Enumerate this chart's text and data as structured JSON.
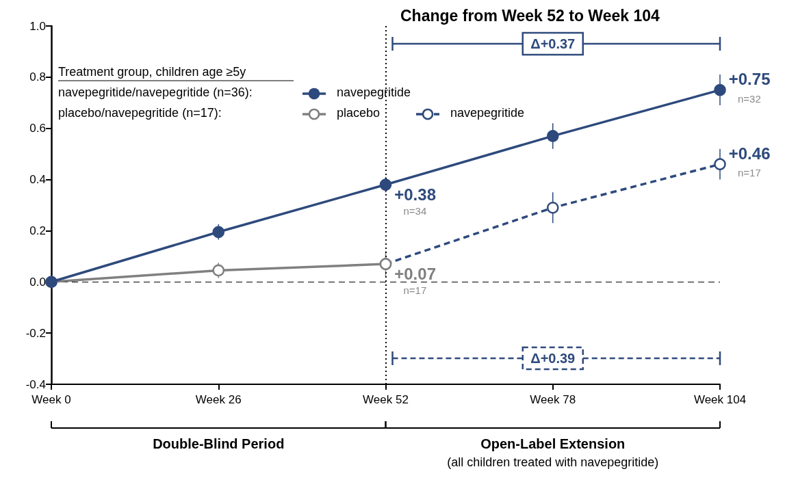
{
  "chart_data": {
    "type": "line",
    "title": "Change from Week 52 to Week 104",
    "legend_title": "Treatment group, children age ≥5y",
    "categories": [
      "Week 0",
      "Week 26",
      "Week 52",
      "Week 78",
      "Week 104"
    ],
    "series": [
      {
        "name": "navepegritide",
        "color": "#2e4a7d",
        "values": [
          0,
          0.195,
          0.38,
          0.57,
          0.75
        ],
        "errors": [
          null,
          0.03,
          0.03,
          0.05,
          0.06
        ],
        "value_labels": [
          null,
          null,
          "+0.38",
          null,
          "+0.75"
        ],
        "line_style": "solid"
      },
      {
        "name": "placebo",
        "color": "#808080",
        "values": [
          0,
          0.045,
          0.07,
          null,
          null
        ],
        "errors": [
          null,
          0.03,
          0.05,
          null,
          null
        ],
        "value_labels": [
          null,
          null,
          "+0.07",
          null,
          null
        ],
        "line_style": "solid"
      },
      {
        "name": "navepegritide",
        "color": "#2e4a7d",
        "values": [
          null,
          null,
          0.07,
          0.29,
          0.46
        ],
        "errors": [
          null,
          null,
          null,
          0.06,
          0.06
        ],
        "value_labels": [
          null,
          null,
          null,
          null,
          "+0.46"
        ],
        "line_style": "dashed"
      }
    ],
    "ylim": [
      -0.4,
      1.0
    ],
    "yticks": [
      {
        "value": -0.4,
        "label": "-0.4"
      },
      {
        "value": -0.2,
        "label": "-0.2"
      },
      {
        "value": 0,
        "label": "0.0"
      },
      {
        "value": 0.2,
        "label": "0.2"
      },
      {
        "value": 0.4,
        "label": "0.4"
      },
      {
        "value": 0.6,
        "label": "0.6"
      },
      {
        "value": 0.8,
        "label": "0.8"
      },
      {
        "value": 1,
        "label": "1.0"
      }
    ],
    "grid": false,
    "legend": "top left",
    "marker": "circle",
    "ref_lines": [
      {
        "axis": "x",
        "value": "Week 52",
        "color": "#000000",
        "line_style": "dotted"
      },
      {
        "axis": "y",
        "value": 0,
        "color": "#000000",
        "line_style": "dashed"
      }
    ],
    "annotations": [
      "navepegritide/navepegritide (n=36):",
      "placebo/navepegritide (n=17):",
      {
        "text": "n=34",
        "x": "Week 52",
        "y": 0.38
      },
      {
        "text": "n=17",
        "x": "Week 52",
        "y": 0.07
      },
      {
        "text": "n=32",
        "x": "Week 104",
        "y": 0.75
      },
      {
        "text": "n=17",
        "x": "Week 104",
        "y": 0.46
      },
      "Δ+0.37",
      "Δ+0.39",
      "Double-Blind Period",
      "Open-Label Extension",
      "(all children treated with navepegritide)"
    ]
  }
}
